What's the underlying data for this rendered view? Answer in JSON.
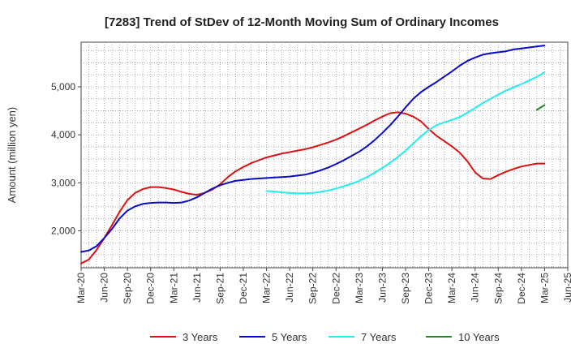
{
  "chart_data": {
    "type": "line",
    "title": "[7283]  Trend of StDev of 12-Month Moving Sum of Ordinary Incomes",
    "ylabel": "Amount (million yen)",
    "xlabel": "",
    "x_ticks": [
      "Mar-20",
      "Jun-20",
      "Sep-20",
      "Dec-20",
      "Mar-21",
      "Jun-21",
      "Sep-21",
      "Dec-21",
      "Mar-22",
      "Jun-22",
      "Sep-22",
      "Dec-22",
      "Mar-23",
      "Jun-23",
      "Sep-23",
      "Dec-23",
      "Mar-24",
      "Jun-24",
      "Sep-24",
      "Dec-24",
      "Mar-25",
      "Jun-25"
    ],
    "y_ticks": [
      "2,000",
      "3,000",
      "4,000",
      "5,000"
    ],
    "y_tick_values": [
      2000,
      3000,
      4000,
      5000
    ],
    "ylim": [
      1230,
      5930
    ],
    "x_range_months": [
      0,
      63
    ],
    "grid": true,
    "legend_position": "bottom",
    "series": [
      {
        "name": "3 Years",
        "color": "#dd1111",
        "x": [
          0,
          1,
          2,
          3,
          4,
          5,
          6,
          7,
          8,
          9,
          10,
          11,
          12,
          13,
          14,
          15,
          16,
          17,
          18,
          19,
          20,
          21,
          22,
          23,
          24,
          25,
          26,
          27,
          28,
          29,
          30,
          31,
          32,
          33,
          34,
          35,
          36,
          37,
          38,
          39,
          40,
          41,
          42,
          43,
          44,
          45,
          46,
          47,
          48,
          49,
          50,
          51,
          52,
          53,
          54,
          55,
          56,
          57,
          58,
          59,
          60
        ],
        "values": [
          1320,
          1400,
          1600,
          1850,
          2120,
          2400,
          2640,
          2790,
          2870,
          2910,
          2910,
          2890,
          2860,
          2810,
          2770,
          2750,
          2790,
          2860,
          2970,
          3120,
          3240,
          3330,
          3410,
          3470,
          3530,
          3570,
          3610,
          3640,
          3670,
          3700,
          3740,
          3790,
          3840,
          3900,
          3970,
          4050,
          4130,
          4210,
          4300,
          4380,
          4450,
          4470,
          4440,
          4380,
          4280,
          4120,
          3980,
          3870,
          3760,
          3630,
          3450,
          3220,
          3090,
          3080,
          3160,
          3230,
          3290,
          3340,
          3370,
          3400,
          3400
        ]
      },
      {
        "name": "5 Years",
        "color": "#0a0acc",
        "x": [
          0,
          1,
          2,
          3,
          4,
          5,
          6,
          7,
          8,
          9,
          10,
          11,
          12,
          13,
          14,
          15,
          16,
          17,
          18,
          19,
          20,
          21,
          22,
          23,
          24,
          25,
          26,
          27,
          28,
          29,
          30,
          31,
          32,
          33,
          34,
          35,
          36,
          37,
          38,
          39,
          40,
          41,
          42,
          43,
          44,
          45,
          46,
          47,
          48,
          49,
          50,
          51,
          52,
          53,
          54,
          55,
          56,
          57,
          58,
          59,
          60
        ],
        "values": [
          1560,
          1590,
          1680,
          1850,
          2040,
          2260,
          2420,
          2510,
          2560,
          2580,
          2590,
          2590,
          2580,
          2590,
          2630,
          2700,
          2790,
          2880,
          2950,
          3000,
          3040,
          3060,
          3080,
          3090,
          3100,
          3110,
          3120,
          3130,
          3150,
          3170,
          3210,
          3260,
          3320,
          3390,
          3470,
          3560,
          3650,
          3760,
          3890,
          4040,
          4200,
          4380,
          4570,
          4750,
          4890,
          5000,
          5100,
          5210,
          5320,
          5440,
          5540,
          5610,
          5670,
          5700,
          5720,
          5740,
          5780,
          5800,
          5820,
          5840,
          5860
        ]
      },
      {
        "name": "7 Years",
        "color": "#22eeee",
        "x": [
          24,
          25,
          26,
          27,
          28,
          29,
          30,
          31,
          32,
          33,
          34,
          35,
          36,
          37,
          38,
          39,
          40,
          41,
          42,
          43,
          44,
          45,
          46,
          47,
          48,
          49,
          50,
          51,
          52,
          53,
          54,
          55,
          56,
          57,
          58,
          59,
          60
        ],
        "values": [
          2830,
          2820,
          2800,
          2790,
          2780,
          2780,
          2790,
          2810,
          2840,
          2880,
          2930,
          2980,
          3040,
          3120,
          3210,
          3310,
          3420,
          3540,
          3670,
          3820,
          3970,
          4100,
          4200,
          4260,
          4310,
          4370,
          4460,
          4560,
          4660,
          4750,
          4840,
          4920,
          4990,
          5060,
          5130,
          5210,
          5300
        ]
      },
      {
        "name": "10 Years",
        "color": "#228822",
        "x": [
          59,
          60
        ],
        "values": [
          4520,
          4620
        ]
      }
    ]
  }
}
